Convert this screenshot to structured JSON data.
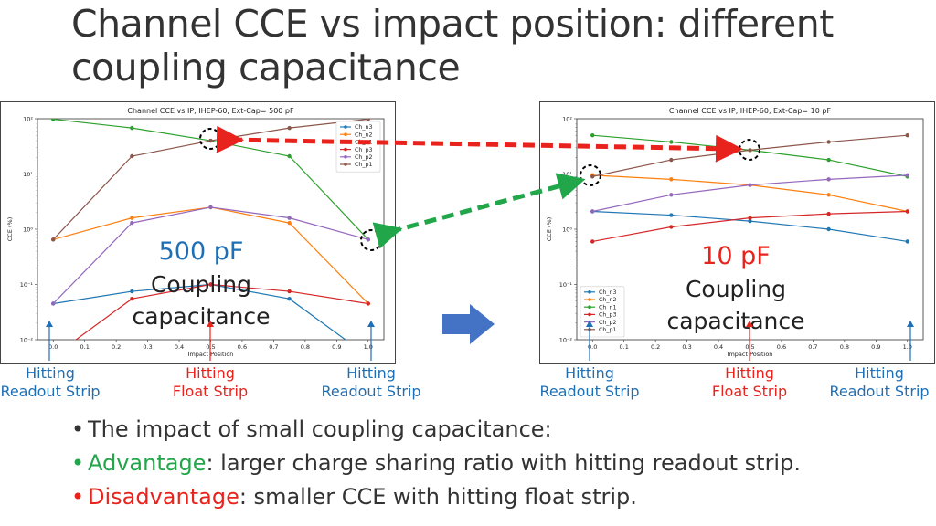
{
  "slide": {
    "title_line1": "Channel CCE vs impact position: different",
    "title_line2": "coupling capacitance"
  },
  "chart_data": [
    {
      "type": "line",
      "title": "Channel CCE vs IP, IHEP-60, Ext-Cap= 500 pF",
      "xlabel": "Impact Position",
      "ylabel": "CCE (%)",
      "yscale": "log",
      "xlim": [
        -0.05,
        1.05
      ],
      "ylim": [
        0.01,
        100
      ],
      "x_ticks": [
        "0.0",
        "0.1",
        "0.2",
        "0.3",
        "0.4",
        "0.5",
        "0.6",
        "0.7",
        "0.8",
        "0.9",
        "1.0"
      ],
      "y_ticks": [
        "10⁻²",
        "10⁻¹",
        "10⁰",
        "10¹",
        "10²"
      ],
      "legend_position": "top-right",
      "x": [
        0,
        0.25,
        0.5,
        0.75,
        1.0
      ],
      "series": [
        {
          "name": "Ch_n3",
          "color": "#1f77b4",
          "values": [
            0.045,
            0.075,
            0.1,
            0.055,
            0.005
          ]
        },
        {
          "name": "Ch_n2",
          "color": "#ff7f0e",
          "values": [
            0.65,
            1.6,
            2.5,
            1.3,
            0.045
          ]
        },
        {
          "name": "Ch_n1",
          "color": "#2ca02c",
          "values": [
            98,
            68,
            40,
            21,
            0.65
          ]
        },
        {
          "name": "Ch_p3",
          "color": "#d62728",
          "values": [
            0.005,
            0.055,
            0.1,
            0.075,
            0.045
          ]
        },
        {
          "name": "Ch_p2",
          "color": "#9467bd",
          "values": [
            0.045,
            1.3,
            2.5,
            1.6,
            0.65
          ]
        },
        {
          "name": "Ch_p1",
          "color": "#8c564b",
          "values": [
            0.65,
            21,
            40,
            68,
            98
          ]
        }
      ]
    },
    {
      "type": "line",
      "title": "Channel CCE vs IP, IHEP-60, Ext-Cap= 10 pF",
      "xlabel": "Impact Position",
      "ylabel": "CCE (%)",
      "yscale": "log",
      "xlim": [
        -0.05,
        1.05
      ],
      "ylim": [
        0.01,
        100
      ],
      "x_ticks": [
        "0.0",
        "0.1",
        "0.2",
        "0.3",
        "0.4",
        "0.5",
        "0.6",
        "0.7",
        "0.8",
        "0.9",
        "1.0"
      ],
      "y_ticks": [
        "10⁻²",
        "10⁻¹",
        "10⁰",
        "10¹",
        "10²"
      ],
      "legend_position": "bottom-left",
      "x": [
        0,
        0.25,
        0.5,
        0.75,
        1.0
      ],
      "series": [
        {
          "name": "Ch_n3",
          "color": "#1f77b4",
          "values": [
            2.1,
            1.8,
            1.4,
            1.0,
            0.6
          ]
        },
        {
          "name": "Ch_n2",
          "color": "#ff7f0e",
          "values": [
            9.5,
            8,
            6.3,
            4.2,
            2.1
          ]
        },
        {
          "name": "Ch_n1",
          "color": "#2ca02c",
          "values": [
            50,
            38,
            27,
            18,
            9
          ]
        },
        {
          "name": "Ch_p3",
          "color": "#d62728",
          "values": [
            0.6,
            1.1,
            1.6,
            1.9,
            2.1
          ]
        },
        {
          "name": "Ch_p2",
          "color": "#9467bd",
          "values": [
            2.1,
            4.2,
            6.3,
            8,
            9.5
          ]
        },
        {
          "name": "Ch_p1",
          "color": "#8c564b",
          "values": [
            9,
            18,
            27,
            38,
            50
          ]
        }
      ]
    }
  ],
  "left_panel": {
    "cap_value": "500 pF",
    "cap_value_color": "#1f6fb5",
    "cap_label_1": "Coupling",
    "cap_label_2": "capacitance"
  },
  "right_panel": {
    "cap_value": "10 pF",
    "cap_value_color": "#e8231d",
    "cap_label_1": "Coupling",
    "cap_label_2": "capacitance"
  },
  "strip_labels": {
    "hitting": "Hitting",
    "readout_strip": "Readout Strip",
    "float_strip": "Float Strip",
    "readout_color": "#1f6fb5",
    "float_color": "#e8231d"
  },
  "bullets": [
    {
      "bullet": "•",
      "prefix": "",
      "text": "The impact of small coupling capacitance:",
      "color": "#333333"
    },
    {
      "bullet": "•",
      "prefix": "Advantage",
      "text": ": larger charge sharing ratio with hitting readout strip.",
      "color": "#22a64a"
    },
    {
      "bullet": "•",
      "prefix": "Disadvantage",
      "text": ": smaller CCE with hitting float strip.",
      "color": "#e8231d"
    }
  ]
}
